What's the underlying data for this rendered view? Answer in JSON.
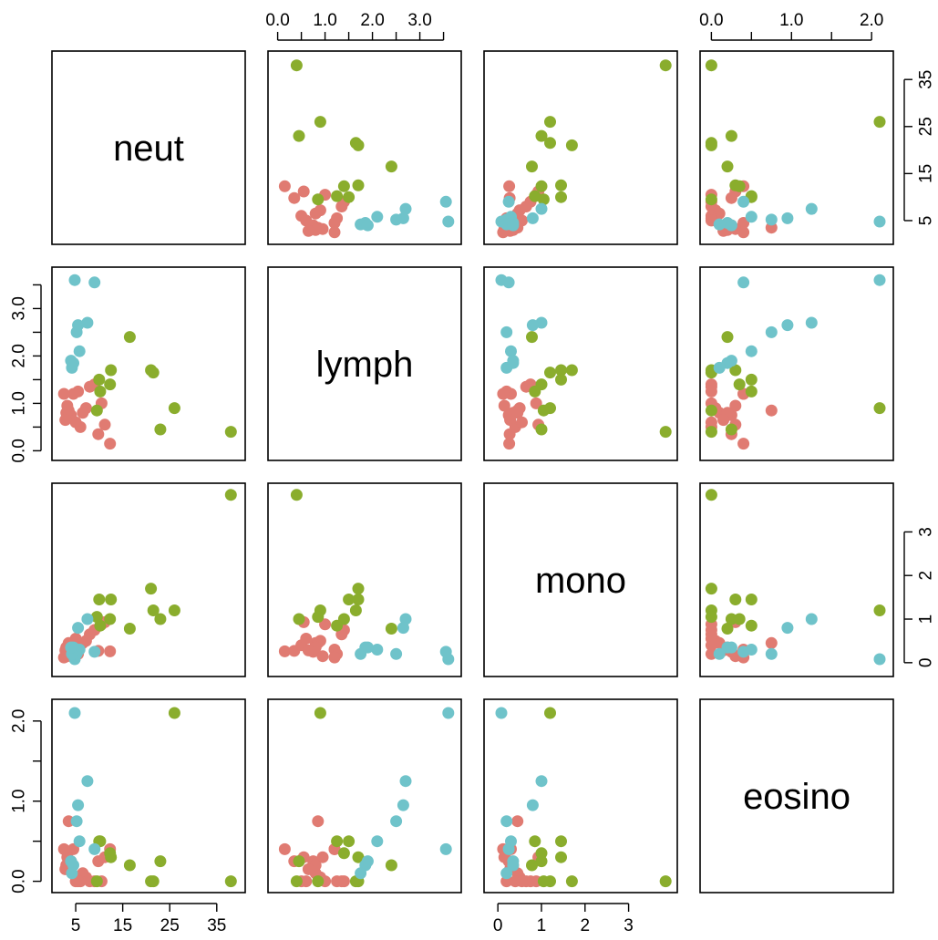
{
  "chart_data": {
    "type": "scatter-matrix",
    "variables": [
      "neut",
      "lymph",
      "mono",
      "eosino"
    ],
    "ranges": {
      "neut": [
        1.5,
        39.5
      ],
      "lymph": [
        -0.05,
        3.72
      ],
      "mono": [
        -0.15,
        3.95
      ],
      "eosino": [
        -0.05,
        2.18
      ]
    },
    "ticks": {
      "neut": [
        5,
        15,
        25,
        35
      ],
      "lymph": [
        0.0,
        1.0,
        2.0,
        3.0
      ],
      "lymph_minor": [
        0.5,
        1.5,
        2.5,
        3.5
      ],
      "mono": [
        0,
        1,
        2,
        3
      ],
      "eosino": [
        0.0,
        1.0,
        2.0
      ],
      "eosino_minor": [
        0.5,
        1.5
      ]
    },
    "tick_labels": {
      "neut": [
        "5",
        "15",
        "25",
        "35"
      ],
      "lymph": [
        "0.0",
        "1.0",
        "2.0",
        "3.0"
      ],
      "mono": [
        "0",
        "1",
        "2",
        "3"
      ],
      "eosino": [
        "0.0",
        "1.0",
        "2.0"
      ]
    },
    "group_colors": [
      "#e07b72",
      "#8aad2d",
      "#6fc3ca"
    ],
    "points": [
      {
        "g": 0,
        "neut": 12.3,
        "lymph": 0.15,
        "mono": 0.26,
        "eosino": 0.4
      },
      {
        "g": 0,
        "neut": 11.2,
        "lymph": 0.55,
        "mono": 0.93,
        "eosino": 0.3
      },
      {
        "g": 0,
        "neut": 10.5,
        "lymph": 1.0,
        "mono": 0.88,
        "eosino": 0.0
      },
      {
        "g": 0,
        "neut": 9.8,
        "lymph": 0.35,
        "mono": 0.27,
        "eosino": 0.25
      },
      {
        "g": 0,
        "neut": 9.0,
        "lymph": 1.4,
        "mono": 0.75,
        "eosino": 0.0
      },
      {
        "g": 0,
        "neut": 8.0,
        "lymph": 1.35,
        "mono": 0.65,
        "eosino": 0.0
      },
      {
        "g": 0,
        "neut": 7.2,
        "lymph": 0.9,
        "mono": 0.5,
        "eosino": 0.05
      },
      {
        "g": 0,
        "neut": 6.5,
        "lymph": 0.8,
        "mono": 0.45,
        "eosino": 0.1
      },
      {
        "g": 0,
        "neut": 6.0,
        "lymph": 0.5,
        "mono": 0.4,
        "eosino": 0.0
      },
      {
        "g": 0,
        "neut": 5.5,
        "lymph": 1.25,
        "mono": 0.2,
        "eosino": 0.0
      },
      {
        "g": 0,
        "neut": 5.0,
        "lymph": 0.6,
        "mono": 0.55,
        "eosino": 0.0
      },
      {
        "g": 0,
        "neut": 4.5,
        "lymph": 1.2,
        "mono": 0.3,
        "eosino": 0.4
      },
      {
        "g": 0,
        "neut": 4.0,
        "lymph": 0.75,
        "mono": 0.25,
        "eosino": 0.25
      },
      {
        "g": 0,
        "neut": 3.5,
        "lymph": 0.85,
        "mono": 0.45,
        "eosino": 0.75
      },
      {
        "g": 0,
        "neut": 3.2,
        "lymph": 0.95,
        "mono": 0.15,
        "eosino": 0.3
      },
      {
        "g": 0,
        "neut": 3.0,
        "lymph": 0.8,
        "mono": 0.35,
        "eosino": 0.2
      },
      {
        "g": 0,
        "neut": 2.8,
        "lymph": 0.65,
        "mono": 0.28,
        "eosino": 0.15
      },
      {
        "g": 0,
        "neut": 2.5,
        "lymph": 1.2,
        "mono": 0.12,
        "eosino": 0.4
      },
      {
        "g": 1,
        "neut": 38.0,
        "lymph": 0.4,
        "mono": 3.85,
        "eosino": 0.0
      },
      {
        "g": 1,
        "neut": 26.0,
        "lymph": 0.9,
        "mono": 1.2,
        "eosino": 2.1
      },
      {
        "g": 1,
        "neut": 23.0,
        "lymph": 0.45,
        "mono": 1.0,
        "eosino": 0.25
      },
      {
        "g": 1,
        "neut": 21.0,
        "lymph": 1.7,
        "mono": 1.7,
        "eosino": 0.0
      },
      {
        "g": 1,
        "neut": 21.5,
        "lymph": 1.65,
        "mono": 1.2,
        "eosino": 0.0
      },
      {
        "g": 1,
        "neut": 16.5,
        "lymph": 2.4,
        "mono": 0.78,
        "eosino": 0.2
      },
      {
        "g": 1,
        "neut": 12.5,
        "lymph": 1.7,
        "mono": 1.45,
        "eosino": 0.3
      },
      {
        "g": 1,
        "neut": 12.3,
        "lymph": 1.4,
        "mono": 1.0,
        "eosino": 0.35
      },
      {
        "g": 1,
        "neut": 10.0,
        "lymph": 1.5,
        "mono": 1.45,
        "eosino": 0.5
      },
      {
        "g": 1,
        "neut": 9.5,
        "lymph": 0.85,
        "mono": 1.05,
        "eosino": 0.0
      },
      {
        "g": 1,
        "neut": 10.2,
        "lymph": 1.25,
        "mono": 0.85,
        "eosino": 0.5
      },
      {
        "g": 2,
        "neut": 4.8,
        "lymph": 3.6,
        "mono": 0.08,
        "eosino": 2.1
      },
      {
        "g": 2,
        "neut": 9.0,
        "lymph": 3.55,
        "mono": 0.25,
        "eosino": 0.4
      },
      {
        "g": 2,
        "neut": 7.5,
        "lymph": 2.7,
        "mono": 1.0,
        "eosino": 1.25
      },
      {
        "g": 2,
        "neut": 5.5,
        "lymph": 2.65,
        "mono": 0.8,
        "eosino": 0.95
      },
      {
        "g": 2,
        "neut": 5.2,
        "lymph": 2.5,
        "mono": 0.2,
        "eosino": 0.75
      },
      {
        "g": 2,
        "neut": 5.8,
        "lymph": 2.1,
        "mono": 0.3,
        "eosino": 0.5
      },
      {
        "g": 2,
        "neut": 4.5,
        "lymph": 1.85,
        "mono": 0.35,
        "eosino": 0.2
      },
      {
        "g": 2,
        "neut": 4.2,
        "lymph": 1.75,
        "mono": 0.2,
        "eosino": 0.1
      },
      {
        "g": 2,
        "neut": 4.0,
        "lymph": 1.9,
        "mono": 0.35,
        "eosino": 0.25
      }
    ]
  }
}
